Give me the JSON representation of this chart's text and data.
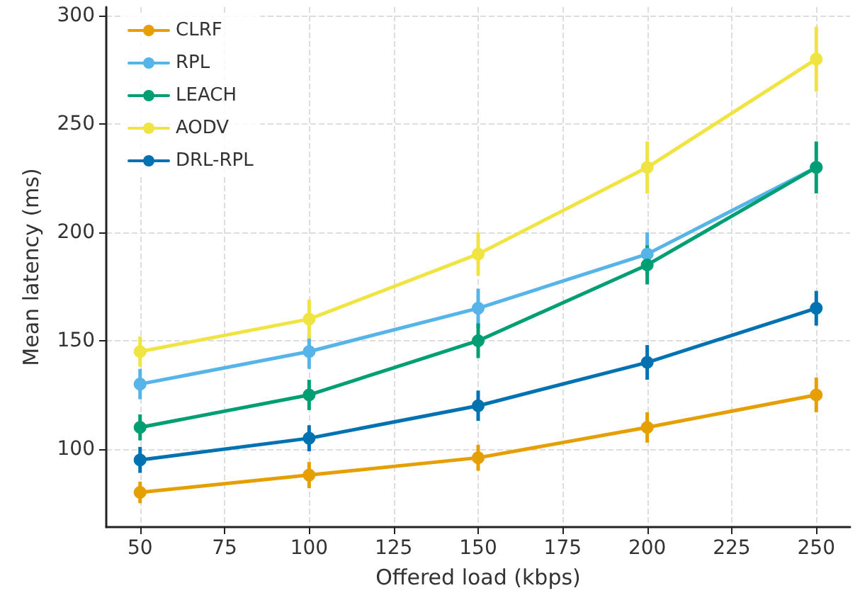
{
  "chart_data": {
    "type": "line",
    "xlabel": "Offered load (kbps)",
    "ylabel": "Mean latency (ms)",
    "x": [
      50,
      100,
      150,
      200,
      250
    ],
    "series": [
      {
        "name": "CLRF",
        "color": "#e69f00",
        "values": [
          80,
          88,
          96,
          110,
          125
        ],
        "errors": [
          5,
          6,
          6,
          7,
          8
        ]
      },
      {
        "name": "RPL",
        "color": "#56b4e9",
        "values": [
          130,
          145,
          165,
          190,
          230
        ],
        "errors": [
          7,
          8,
          9,
          10,
          null
        ]
      },
      {
        "name": "LEACH",
        "color": "#009e73",
        "values": [
          110,
          125,
          150,
          185,
          230
        ],
        "errors": [
          6,
          7,
          8,
          9,
          12
        ]
      },
      {
        "name": "AODV",
        "color": "#f0e442",
        "values": [
          145,
          160,
          190,
          230,
          280
        ],
        "errors": [
          7,
          9,
          10,
          12,
          15
        ]
      },
      {
        "name": "DRL-RPL",
        "color": "#0072b2",
        "values": [
          95,
          105,
          120,
          140,
          165
        ],
        "errors": [
          6,
          6,
          7,
          8,
          8
        ]
      }
    ],
    "xlim": [
      40,
      260
    ],
    "xticks": [
      50,
      75,
      100,
      125,
      150,
      175,
      200,
      225,
      250
    ],
    "ylim": [
      64,
      304
    ],
    "yticks": [
      100,
      150,
      200,
      250,
      300
    ],
    "grid": true,
    "legend": "top left",
    "marker": "circle",
    "line_style": "solid"
  }
}
